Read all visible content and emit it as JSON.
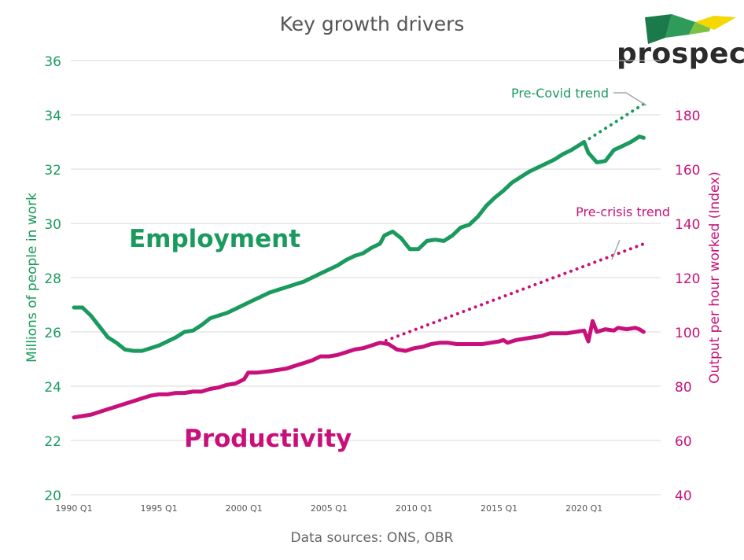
{
  "title": "Key growth drivers",
  "source": "Data sources: ONS, OBR",
  "logo": {
    "text": "prospect",
    "colors": [
      "#1a7a4a",
      "#7cc242",
      "#f5d800",
      "#2e9b5a"
    ]
  },
  "chart_data": {
    "type": "line",
    "x_tick_labels": [
      "1990 Q1",
      "1995 Q1",
      "2000 Q1",
      "2005 Q1",
      "2010 Q1",
      "2015 Q1",
      "2020 Q1"
    ],
    "y_left": {
      "label": "Millions of people in work",
      "range": [
        20,
        36
      ],
      "ticks": [
        20,
        22,
        24,
        26,
        28,
        30,
        32,
        34,
        36
      ],
      "color": "#1a9a5e"
    },
    "y_right": {
      "label": "Output per hour worked (Index)",
      "range": [
        40,
        200
      ],
      "ticks": [
        40,
        60,
        80,
        100,
        120,
        140,
        160,
        180
      ],
      "color": "#c8107a"
    },
    "grid": true,
    "labels": {
      "employment": "Employment",
      "productivity": "Productivity",
      "pre_covid": "Pre-Covid trend",
      "pre_crisis": "Pre-crisis trend"
    },
    "series": [
      {
        "name": "Employment",
        "axis": "left",
        "style": "solid",
        "color": "#1a9a5e",
        "points": [
          [
            1990.0,
            26.9
          ],
          [
            1990.5,
            26.9
          ],
          [
            1991.0,
            26.6
          ],
          [
            1991.5,
            26.2
          ],
          [
            1992.0,
            25.8
          ],
          [
            1992.5,
            25.6
          ],
          [
            1993.0,
            25.35
          ],
          [
            1993.5,
            25.3
          ],
          [
            1994.0,
            25.3
          ],
          [
            1994.5,
            25.4
          ],
          [
            1995.0,
            25.5
          ],
          [
            1995.5,
            25.65
          ],
          [
            1996.0,
            25.8
          ],
          [
            1996.5,
            26.0
          ],
          [
            1997.0,
            26.05
          ],
          [
            1997.5,
            26.25
          ],
          [
            1998.0,
            26.5
          ],
          [
            1998.5,
            26.6
          ],
          [
            1999.0,
            26.7
          ],
          [
            1999.5,
            26.85
          ],
          [
            2000.0,
            27.0
          ],
          [
            2000.5,
            27.15
          ],
          [
            2001.0,
            27.3
          ],
          [
            2001.5,
            27.45
          ],
          [
            2002.0,
            27.55
          ],
          [
            2002.5,
            27.65
          ],
          [
            2003.0,
            27.75
          ],
          [
            2003.5,
            27.85
          ],
          [
            2004.0,
            28.0
          ],
          [
            2004.5,
            28.15
          ],
          [
            2005.0,
            28.3
          ],
          [
            2005.5,
            28.45
          ],
          [
            2006.0,
            28.65
          ],
          [
            2006.5,
            28.8
          ],
          [
            2007.0,
            28.9
          ],
          [
            2007.5,
            29.1
          ],
          [
            2008.0,
            29.25
          ],
          [
            2008.25,
            29.55
          ],
          [
            2008.75,
            29.7
          ],
          [
            2009.25,
            29.45
          ],
          [
            2009.75,
            29.05
          ],
          [
            2010.25,
            29.05
          ],
          [
            2010.75,
            29.35
          ],
          [
            2011.25,
            29.4
          ],
          [
            2011.75,
            29.35
          ],
          [
            2012.25,
            29.55
          ],
          [
            2012.75,
            29.85
          ],
          [
            2013.25,
            29.95
          ],
          [
            2013.75,
            30.25
          ],
          [
            2014.25,
            30.65
          ],
          [
            2014.75,
            30.95
          ],
          [
            2015.25,
            31.2
          ],
          [
            2015.75,
            31.5
          ],
          [
            2016.25,
            31.7
          ],
          [
            2016.75,
            31.9
          ],
          [
            2017.25,
            32.05
          ],
          [
            2017.75,
            32.2
          ],
          [
            2018.25,
            32.35
          ],
          [
            2018.75,
            32.55
          ],
          [
            2019.25,
            32.7
          ],
          [
            2019.75,
            32.9
          ],
          [
            2020.0,
            33.0
          ],
          [
            2020.25,
            32.6
          ],
          [
            2020.75,
            32.25
          ],
          [
            2021.25,
            32.3
          ],
          [
            2021.75,
            32.7
          ],
          [
            2022.25,
            32.85
          ],
          [
            2022.75,
            33.0
          ],
          [
            2023.25,
            33.2
          ],
          [
            2023.5,
            33.15
          ]
        ]
      },
      {
        "name": "Pre-Covid trend",
        "axis": "left",
        "style": "dotted",
        "color": "#1a9a5e",
        "points": [
          [
            2020.0,
            33.0
          ],
          [
            2023.75,
            34.5
          ]
        ]
      },
      {
        "name": "Productivity",
        "axis": "right",
        "style": "solid",
        "color": "#c8107a",
        "points": [
          [
            1990.0,
            68.5
          ],
          [
            1990.5,
            69.0
          ],
          [
            1991.0,
            69.5
          ],
          [
            1991.5,
            70.5
          ],
          [
            1992.0,
            71.5
          ],
          [
            1992.5,
            72.5
          ],
          [
            1993.0,
            73.5
          ],
          [
            1993.5,
            74.5
          ],
          [
            1994.0,
            75.5
          ],
          [
            1994.5,
            76.5
          ],
          [
            1995.0,
            77.0
          ],
          [
            1995.5,
            77.0
          ],
          [
            1996.0,
            77.5
          ],
          [
            1996.5,
            77.5
          ],
          [
            1997.0,
            78.0
          ],
          [
            1997.5,
            78.0
          ],
          [
            1998.0,
            79.0
          ],
          [
            1998.5,
            79.5
          ],
          [
            1999.0,
            80.5
          ],
          [
            1999.5,
            81.0
          ],
          [
            2000.0,
            82.5
          ],
          [
            2000.25,
            85.0
          ],
          [
            2000.75,
            85.0
          ],
          [
            2001.5,
            85.5
          ],
          [
            2002.0,
            86.0
          ],
          [
            2002.5,
            86.5
          ],
          [
            2003.0,
            87.5
          ],
          [
            2003.5,
            88.5
          ],
          [
            2004.0,
            89.5
          ],
          [
            2004.5,
            91.0
          ],
          [
            2005.0,
            91.0
          ],
          [
            2005.5,
            91.5
          ],
          [
            2006.0,
            92.5
          ],
          [
            2006.5,
            93.5
          ],
          [
            2007.0,
            94.0
          ],
          [
            2007.5,
            95.0
          ],
          [
            2008.0,
            96.0
          ],
          [
            2008.5,
            95.5
          ],
          [
            2009.0,
            93.5
          ],
          [
            2009.5,
            93.0
          ],
          [
            2010.0,
            94.0
          ],
          [
            2010.5,
            94.5
          ],
          [
            2011.0,
            95.5
          ],
          [
            2011.5,
            96.0
          ],
          [
            2012.0,
            96.0
          ],
          [
            2012.5,
            95.5
          ],
          [
            2013.0,
            95.5
          ],
          [
            2013.5,
            95.5
          ],
          [
            2014.0,
            95.5
          ],
          [
            2014.5,
            96.0
          ],
          [
            2015.0,
            96.5
          ],
          [
            2015.25,
            97.0
          ],
          [
            2015.5,
            96.0
          ],
          [
            2016.0,
            97.0
          ],
          [
            2016.5,
            97.5
          ],
          [
            2017.0,
            98.0
          ],
          [
            2017.5,
            98.5
          ],
          [
            2018.0,
            99.5
          ],
          [
            2018.5,
            99.5
          ],
          [
            2019.0,
            99.5
          ],
          [
            2019.5,
            100.0
          ],
          [
            2020.0,
            100.5
          ],
          [
            2020.25,
            96.5
          ],
          [
            2020.5,
            104.0
          ],
          [
            2020.75,
            100.0
          ],
          [
            2021.25,
            101.0
          ],
          [
            2021.75,
            100.5
          ],
          [
            2022.0,
            101.5
          ],
          [
            2022.5,
            101.0
          ],
          [
            2023.0,
            101.5
          ],
          [
            2023.25,
            101.0
          ],
          [
            2023.5,
            100.0
          ]
        ]
      },
      {
        "name": "Pre-crisis trend",
        "axis": "right",
        "style": "dotted",
        "color": "#c8107a",
        "points": [
          [
            2008.0,
            96.0
          ],
          [
            2023.75,
            133.0
          ]
        ]
      }
    ]
  }
}
